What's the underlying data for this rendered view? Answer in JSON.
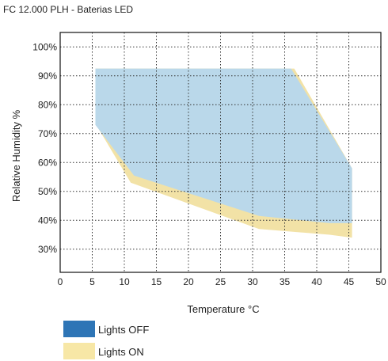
{
  "chart_data": {
    "type": "area",
    "title": "FC 12.000 PLH - Baterias LED",
    "xlabel": "Temperature °C",
    "ylabel": "Relative Humidity %",
    "xlim": [
      0,
      50
    ],
    "ylim": [
      22,
      105
    ],
    "x_ticks": [
      "0",
      "5",
      "10",
      "15",
      "20",
      "25",
      "30",
      "35",
      "40",
      "45",
      "50"
    ],
    "y_ticks": [
      "30%",
      "40%",
      "50%",
      "60%",
      "70%",
      "80%",
      "90%",
      "100%"
    ],
    "grid": "dotted",
    "legend_placement": "bottom-left",
    "series": [
      {
        "name": "Lights ON",
        "color": "#f2e2a6",
        "polygon": [
          [
            5.5,
            92.5
          ],
          [
            36.5,
            92.5
          ],
          [
            45.5,
            58
          ],
          [
            45.5,
            34
          ],
          [
            42,
            35
          ],
          [
            31,
            37
          ],
          [
            11,
            53
          ],
          [
            5.5,
            73.5
          ]
        ]
      },
      {
        "name": "Lights OFF",
        "color": "#bad8ea",
        "polygon": [
          [
            5.5,
            92.5
          ],
          [
            36,
            92.5
          ],
          [
            45.5,
            58
          ],
          [
            45.5,
            39
          ],
          [
            42,
            39
          ],
          [
            31,
            41.5
          ],
          [
            11.5,
            55.5
          ],
          [
            5.5,
            73
          ]
        ]
      }
    ],
    "legend": [
      {
        "label": "Lights OFF",
        "swatch": "#2e75b6"
      },
      {
        "label": "Lights ON",
        "swatch": "#f7e7a6"
      }
    ]
  }
}
